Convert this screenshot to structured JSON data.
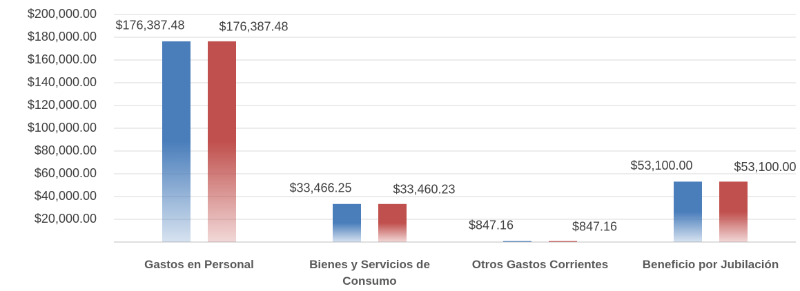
{
  "chart_data": {
    "type": "bar",
    "categories": [
      "Gastos en Personal",
      "Bienes y Servicios de Consumo",
      "Otros Gastos Corrientes",
      "Beneficio por Jubilación"
    ],
    "series": [
      {
        "color": "#4a7ebb",
        "values": [
          176387.48,
          33466.25,
          847.16,
          53100
        ],
        "value_labels": [
          "$176,387.48",
          "$33,466.25",
          "$847.16",
          "$53,100.00"
        ]
      },
      {
        "color": "#c0504d",
        "values": [
          176387.48,
          33460.23,
          847.16,
          53100
        ],
        "value_labels": [
          "$176,387.48",
          "$33,460.23",
          "$847.16",
          "$53,100.00"
        ]
      }
    ],
    "ylim": [
      0,
      200000
    ],
    "yticks": [
      {
        "value": 20000,
        "label": "$20,000.00"
      },
      {
        "value": 40000,
        "label": "$40,000.00"
      },
      {
        "value": 60000,
        "label": "$60,000.00"
      },
      {
        "value": 80000,
        "label": "$80,000.00"
      },
      {
        "value": 100000,
        "label": "$100,000.00"
      },
      {
        "value": 120000,
        "label": "$120,000.00"
      },
      {
        "value": 140000,
        "label": "$140,000.00"
      },
      {
        "value": 160000,
        "label": "$160,000.00"
      },
      {
        "value": 180000,
        "label": "$180,000.00"
      },
      {
        "value": 200000,
        "label": "$200,000.00"
      }
    ],
    "grid": true
  }
}
